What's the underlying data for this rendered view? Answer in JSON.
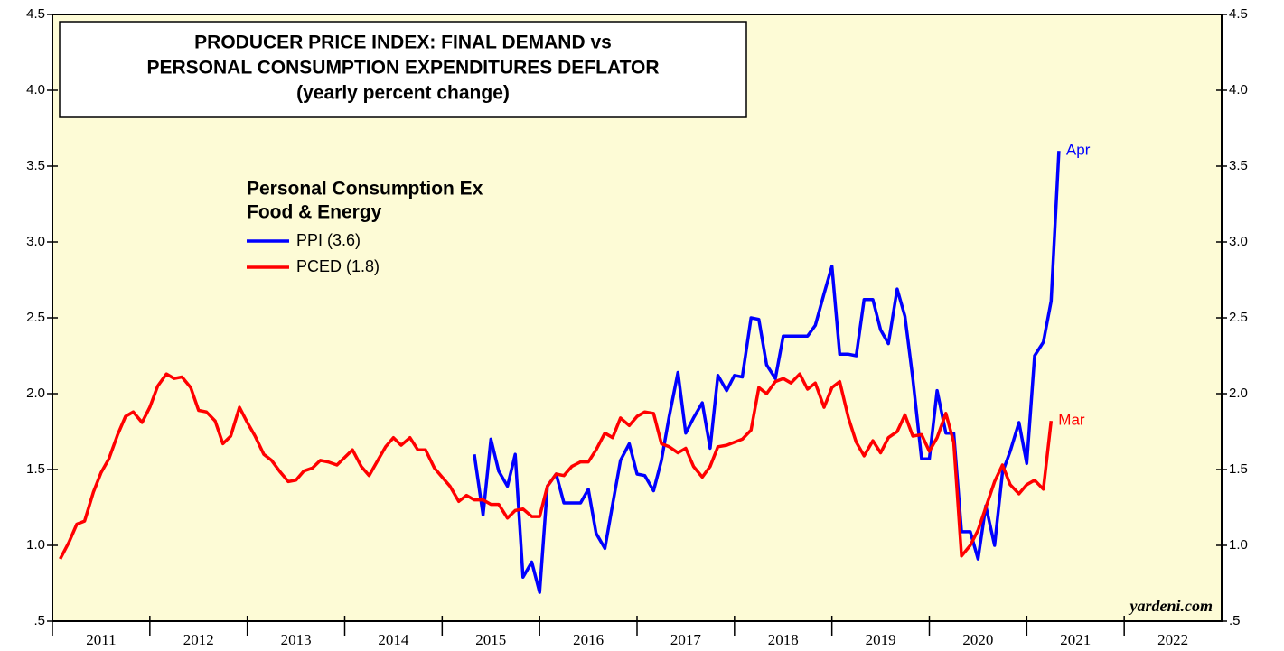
{
  "chart_data": {
    "type": "line",
    "title": [
      "PRODUCER PRICE INDEX: FINAL DEMAND vs",
      "PERSONAL CONSUMPTION EXPENDITURES DEFLATOR",
      "(yearly percent change)"
    ],
    "legend_title": [
      "Personal Consumption Ex",
      "Food & Energy"
    ],
    "source": "yardeni.com",
    "x": [
      2011.08,
      2011.17,
      2011.25,
      2011.33,
      2011.42,
      2011.5,
      2011.58,
      2011.67,
      2011.75,
      2011.83,
      2011.92,
      2012,
      2012.08,
      2012.17,
      2012.25,
      2012.33,
      2012.42,
      2012.5,
      2012.58,
      2012.67,
      2012.75,
      2012.83,
      2012.92,
      2013,
      2013.08,
      2013.17,
      2013.25,
      2013.33,
      2013.42,
      2013.5,
      2013.58,
      2013.67,
      2013.75,
      2013.83,
      2013.92,
      2014,
      2014.08,
      2014.17,
      2014.25,
      2014.33,
      2014.42,
      2014.5,
      2014.58,
      2014.67,
      2014.75,
      2014.83,
      2014.92,
      2015,
      2015.08,
      2015.17,
      2015.25,
      2015.33,
      2015.42,
      2015.5,
      2015.58,
      2015.67,
      2015.75,
      2015.83,
      2015.92,
      2016,
      2016.08,
      2016.17,
      2016.25,
      2016.33,
      2016.42,
      2016.5,
      2016.58,
      2016.67,
      2016.75,
      2016.83,
      2016.92,
      2017,
      2017.08,
      2017.17,
      2017.25,
      2017.33,
      2017.42,
      2017.5,
      2017.58,
      2017.67,
      2017.75,
      2017.83,
      2017.92,
      2018,
      2018.08,
      2018.17,
      2018.25,
      2018.33,
      2018.42,
      2018.5,
      2018.58,
      2018.67,
      2018.75,
      2018.83,
      2018.92,
      2019,
      2019.08,
      2019.17,
      2019.25,
      2019.33,
      2019.42,
      2019.5,
      2019.58,
      2019.67,
      2019.75,
      2019.83,
      2019.92,
      2020,
      2020.08,
      2020.17,
      2020.25,
      2020.33,
      2020.42,
      2020.5,
      2020.58,
      2020.67,
      2020.75,
      2020.83,
      2020.92,
      2021,
      2021.08,
      2021.17,
      2021.25,
      2021.33
    ],
    "series": [
      {
        "name": "PPI (3.6)",
        "color": "#0000ff",
        "end_label": "Apr",
        "values": [
          null,
          null,
          null,
          null,
          null,
          null,
          null,
          null,
          null,
          null,
          null,
          null,
          null,
          null,
          null,
          null,
          null,
          null,
          null,
          null,
          null,
          null,
          null,
          null,
          null,
          null,
          null,
          null,
          null,
          null,
          null,
          null,
          null,
          null,
          null,
          null,
          null,
          null,
          null,
          null,
          null,
          null,
          null,
          null,
          null,
          null,
          null,
          null,
          null,
          null,
          null,
          1.6,
          1.2,
          1.7,
          1.49,
          1.39,
          1.6,
          0.79,
          0.89,
          0.69,
          1.39,
          1.47,
          1.28,
          1.28,
          1.28,
          1.37,
          1.08,
          0.98,
          1.27,
          1.56,
          1.67,
          1.47,
          1.46,
          1.36,
          1.56,
          1.85,
          2.14,
          1.74,
          1.84,
          1.94,
          1.64,
          2.12,
          2.02,
          2.12,
          2.11,
          2.5,
          2.49,
          2.19,
          2.1,
          2.38,
          2.38,
          2.38,
          2.38,
          2.45,
          2.66,
          2.84,
          2.26,
          2.26,
          2.25,
          2.62,
          2.62,
          2.42,
          2.33,
          2.69,
          2.51,
          2.1,
          1.57,
          1.57,
          2.02,
          1.74,
          1.74,
          1.09,
          1.09,
          0.91,
          1.26,
          1.0,
          1.48,
          1.62,
          1.81,
          1.54,
          2.25,
          2.34,
          2.61,
          3.6
        ]
      },
      {
        "name": "PCED (1.8)",
        "color": "#ff0000",
        "end_label": "Mar",
        "values": [
          0.91,
          1.02,
          1.14,
          1.16,
          1.35,
          1.48,
          1.57,
          1.73,
          1.85,
          1.88,
          1.81,
          1.91,
          2.05,
          2.13,
          2.1,
          2.11,
          2.04,
          1.89,
          1.88,
          1.82,
          1.67,
          1.72,
          1.91,
          1.81,
          1.72,
          1.6,
          1.56,
          1.49,
          1.42,
          1.43,
          1.49,
          1.51,
          1.56,
          1.55,
          1.53,
          1.58,
          1.63,
          1.52,
          1.46,
          1.55,
          1.65,
          1.71,
          1.66,
          1.71,
          1.63,
          1.63,
          1.51,
          1.45,
          1.39,
          1.29,
          1.33,
          1.3,
          1.3,
          1.27,
          1.27,
          1.18,
          1.23,
          1.24,
          1.19,
          1.19,
          1.39,
          1.47,
          1.46,
          1.52,
          1.55,
          1.55,
          1.63,
          1.74,
          1.71,
          1.84,
          1.79,
          1.85,
          1.88,
          1.87,
          1.67,
          1.65,
          1.61,
          1.64,
          1.52,
          1.45,
          1.52,
          1.65,
          1.66,
          1.68,
          1.7,
          1.76,
          2.04,
          2.0,
          2.08,
          2.1,
          2.07,
          2.13,
          2.03,
          2.07,
          1.91,
          2.04,
          2.08,
          1.84,
          1.68,
          1.59,
          1.69,
          1.61,
          1.71,
          1.75,
          1.86,
          1.72,
          1.73,
          1.62,
          1.71,
          1.87,
          1.68,
          0.93,
          1.0,
          1.1,
          1.25,
          1.42,
          1.53,
          1.4,
          1.34,
          1.4,
          1.43,
          1.37,
          1.82,
          null
        ]
      }
    ],
    "xlim": [
      2011,
      2023
    ],
    "xticks": [
      2011,
      2012,
      2013,
      2014,
      2015,
      2016,
      2017,
      2018,
      2019,
      2020,
      2021,
      2022
    ],
    "ylim": [
      0.5,
      4.5
    ],
    "yticks": [
      {
        "value": 0.5,
        "label": ".5"
      },
      {
        "value": 1,
        "label": "1.0"
      },
      1.5,
      {
        "value": 2,
        "label": "2.0"
      },
      2.5,
      {
        "value": 3,
        "label": "3.0"
      },
      3.5,
      {
        "value": 4,
        "label": "4.0"
      },
      4.5
    ],
    "y2lim": [
      0.5,
      4.5
    ],
    "y2ticks": [
      {
        "value": 0.5,
        "label": ".5"
      },
      {
        "value": 1,
        "label": "1.0"
      },
      1.5,
      {
        "value": 2,
        "label": "2.0"
      },
      2.5,
      {
        "value": 3,
        "label": "3.0"
      },
      3.5,
      {
        "value": 4,
        "label": "4.0"
      },
      4.5
    ],
    "background": "#fdfbd6"
  }
}
